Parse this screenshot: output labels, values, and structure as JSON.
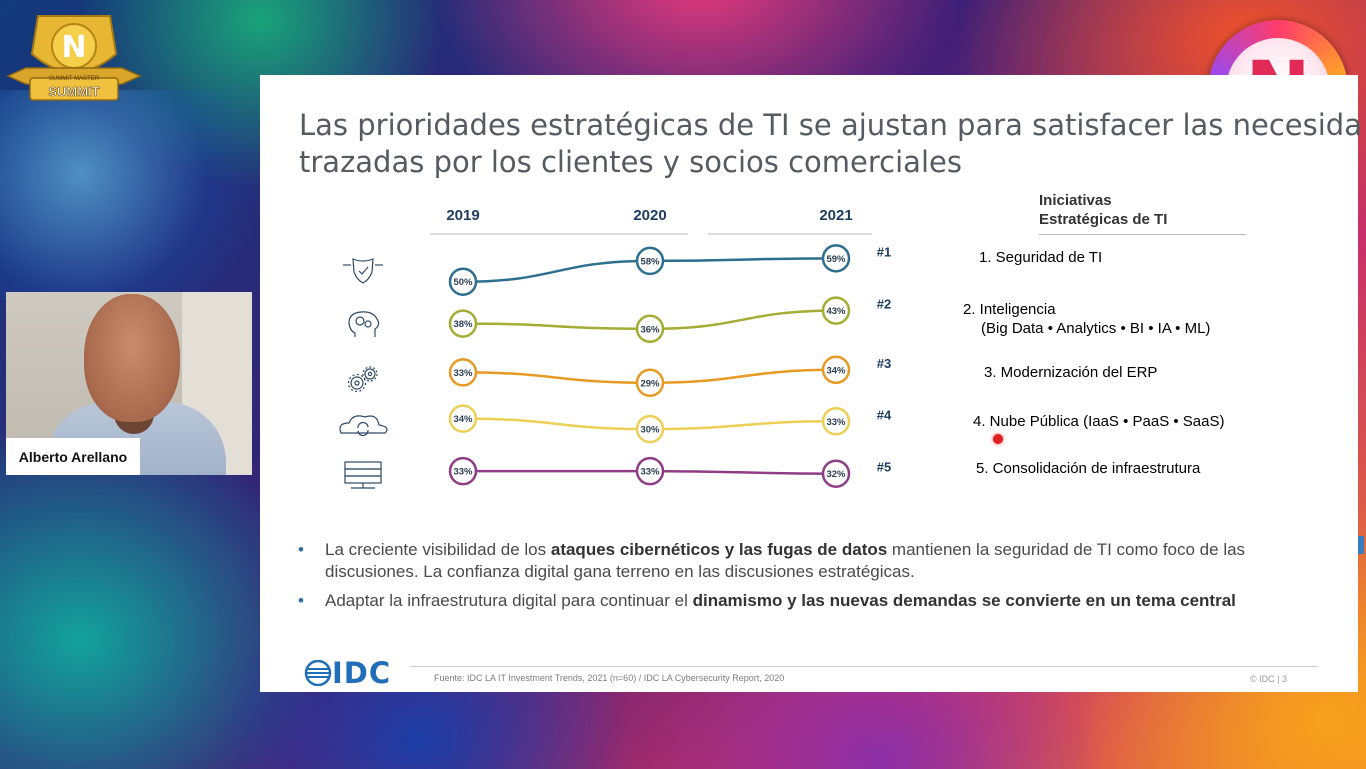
{
  "overlay": {
    "speaker_name": "Alberto Arellano",
    "event_logo_text": "SUMMIT",
    "event_logo_subtext": "SUMMIT MASTER",
    "brand_letter": "N"
  },
  "slide": {
    "title_line1": "Las prioridades estratégicas de TI se ajustan para satisfacer las necesida",
    "title_line2": "trazadas por los clientes y socios comerciales",
    "initiatives_header_line1": "Iniciativas",
    "initiatives_header_line2": "Estratégicas de TI",
    "initiatives": [
      {
        "label": "1. Seguridad de TI",
        "color": "#2a7aa0"
      },
      {
        "label": "2. Inteligencia",
        "label2": "(Big Data • Analytics • BI • IA • ML)",
        "color": "#a0a72a"
      },
      {
        "label": "3. Modernización del ERP",
        "color": "#e7a21f"
      },
      {
        "label": "4. Nube Pública (IaaS • PaaS • SaaS)",
        "color": "#c9a11a"
      },
      {
        "label": "5. Consolidación de infraestrutura",
        "color": "#555555"
      }
    ],
    "bullets": [
      {
        "pre": "La creciente visibilidad de los ",
        "bold": "ataques cibernéticos y las fugas de datos",
        "post": " mantienen la seguridad de TI como foco de las discusiones. La confianza digital gana terreno en las discusiones estratégicas."
      },
      {
        "pre": "Adaptar la infraestrutura digital para continuar el ",
        "bold": "dinamismo y las nuevas demandas se convierte en un tema central",
        "post": ""
      }
    ],
    "footer_logo": "IDC",
    "footer_source": "Fuente: IDC LA IT Investment Trends, 2021 (n=60) / IDC LA Cybersecurity Report, 2020",
    "footer_page": "© IDC  |  3"
  },
  "chart_data": {
    "type": "line",
    "x": [
      "2019",
      "2020",
      "2021"
    ],
    "series": [
      {
        "name": "1. Seguridad de TI",
        "rank": "#1",
        "icon": "shield-icon",
        "color": "#2e6e8e",
        "values": [
          50,
          58,
          59
        ],
        "labels": [
          "50%",
          "58%",
          "59%"
        ]
      },
      {
        "name": "2. Inteligencia",
        "rank": "#2",
        "icon": "brain-gears-icon",
        "color": "#a3ad33",
        "values": [
          38,
          36,
          43
        ],
        "labels": [
          "38%",
          "36%",
          "43%"
        ]
      },
      {
        "name": "3. Modernización del ERP",
        "rank": "#3",
        "icon": "gears-icon",
        "color": "#e79a24",
        "values": [
          33,
          29,
          34
        ],
        "labels": [
          "33%",
          "29%",
          "34%"
        ]
      },
      {
        "name": "4. Nube Pública",
        "rank": "#4",
        "icon": "cloud-sync-icon",
        "color": "#edcf55",
        "values": [
          34,
          30,
          33
        ],
        "labels": [
          "34%",
          "30%",
          "33%"
        ]
      },
      {
        "name": "5. Consolidación de infraestrutura",
        "rank": "#5",
        "icon": "server-icon",
        "color": "#8e3d86",
        "values": [
          33,
          33,
          32
        ],
        "labels": [
          "33%",
          "33%",
          "32%"
        ]
      }
    ]
  }
}
